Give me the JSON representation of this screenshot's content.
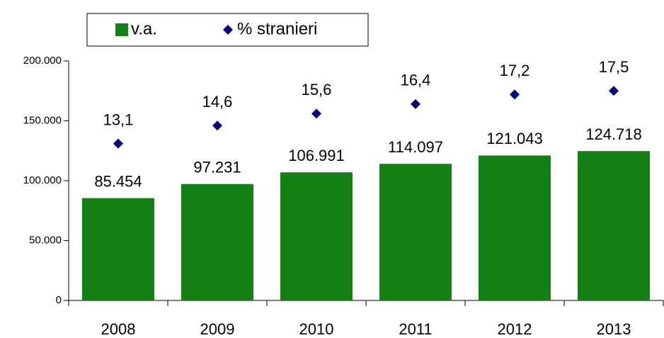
{
  "chart_data": {
    "type": "bar",
    "categories": [
      "2008",
      "2009",
      "2010",
      "2011",
      "2012",
      "2013"
    ],
    "series": [
      {
        "name": "v.a.",
        "type": "bar",
        "color": "#138113",
        "values": [
          85454,
          97231,
          106991,
          114097,
          121043,
          124718
        ],
        "value_labels": [
          "85.454",
          "97.231",
          "106.991",
          "114.097",
          "121.043",
          "124.718"
        ]
      },
      {
        "name": "% stranieri",
        "type": "scatter",
        "axis": "y2",
        "color": "#000080",
        "values": [
          13.1,
          14.6,
          15.6,
          16.4,
          17.2,
          17.5
        ],
        "value_labels": [
          "13,1",
          "14,6",
          "15,6",
          "16,4",
          "17,2",
          "17,5"
        ]
      }
    ],
    "ylim": [
      0,
      200000
    ],
    "yticks": [
      0,
      {
        "value": 50000,
        "label": "50.000"
      },
      {
        "value": 100000,
        "label": "100.000"
      },
      {
        "value": 150000,
        "label": "150.000"
      },
      {
        "value": 200000,
        "label": "200.000"
      }
    ],
    "y2lim": [
      0,
      20
    ],
    "legend": "top-left"
  }
}
